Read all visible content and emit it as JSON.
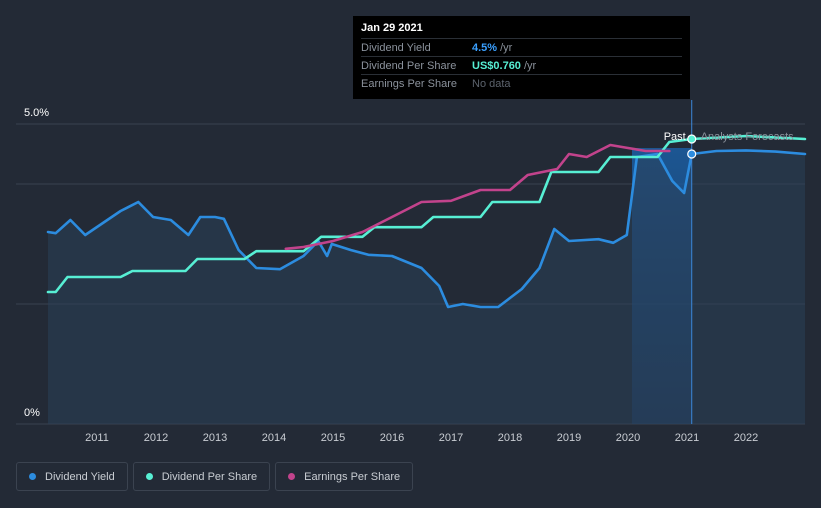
{
  "chart_data": {
    "type": "line",
    "title": "",
    "y_axis": {
      "top_label": "5.0%",
      "bottom_label": "0%",
      "ylim": [
        0,
        5.0
      ]
    },
    "x_ticks": [
      "2011",
      "2012",
      "2013",
      "2014",
      "2015",
      "2016",
      "2017",
      "2018",
      "2019",
      "2020",
      "2021",
      "2022"
    ],
    "x_range": [
      2010.0,
      2023.0
    ],
    "past_label": "Past",
    "forecast_label": "Analysts Forecasts",
    "cursor_year": 2021.08,
    "series": [
      {
        "name": "Dividend Yield",
        "color": "#2c8cdf",
        "points": [
          [
            2010.0,
            3.2
          ],
          [
            2010.3,
            3.18
          ],
          [
            2010.55,
            3.4
          ],
          [
            2010.8,
            3.15
          ],
          [
            2011.1,
            3.35
          ],
          [
            2011.4,
            3.55
          ],
          [
            2011.7,
            3.7
          ],
          [
            2011.95,
            3.45
          ],
          [
            2012.25,
            3.4
          ],
          [
            2012.55,
            3.15
          ],
          [
            2012.75,
            3.45
          ],
          [
            2013.0,
            3.45
          ],
          [
            2013.15,
            3.42
          ],
          [
            2013.4,
            2.9
          ],
          [
            2013.7,
            2.6
          ],
          [
            2014.1,
            2.58
          ],
          [
            2014.5,
            2.8
          ],
          [
            2014.75,
            3.05
          ],
          [
            2014.9,
            2.8
          ],
          [
            2014.98,
            3.0
          ],
          [
            2015.3,
            2.9
          ],
          [
            2015.6,
            2.82
          ],
          [
            2016.0,
            2.8
          ],
          [
            2016.5,
            2.6
          ],
          [
            2016.8,
            2.3
          ],
          [
            2016.95,
            1.95
          ],
          [
            2017.2,
            2.0
          ],
          [
            2017.5,
            1.95
          ],
          [
            2017.8,
            1.95
          ],
          [
            2018.2,
            2.25
          ],
          [
            2018.5,
            2.6
          ],
          [
            2018.75,
            3.25
          ],
          [
            2019.0,
            3.05
          ],
          [
            2019.5,
            3.08
          ],
          [
            2019.75,
            3.02
          ],
          [
            2019.98,
            3.15
          ],
          [
            2020.15,
            4.45
          ],
          [
            2020.5,
            4.5
          ],
          [
            2020.75,
            4.05
          ],
          [
            2020.95,
            3.85
          ],
          [
            2021.08,
            4.5
          ],
          [
            2021.5,
            4.55
          ],
          [
            2022.0,
            4.56
          ],
          [
            2022.5,
            4.54
          ],
          [
            2023.0,
            4.5
          ]
        ]
      },
      {
        "name": "Dividend Per Share",
        "color": "#57efd4",
        "points": [
          [
            2010.0,
            2.2
          ],
          [
            2010.3,
            2.2
          ],
          [
            2010.5,
            2.45
          ],
          [
            2011.4,
            2.45
          ],
          [
            2011.6,
            2.55
          ],
          [
            2012.5,
            2.55
          ],
          [
            2012.7,
            2.75
          ],
          [
            2013.5,
            2.75
          ],
          [
            2013.7,
            2.88
          ],
          [
            2014.5,
            2.88
          ],
          [
            2014.8,
            3.12
          ],
          [
            2015.5,
            3.12
          ],
          [
            2015.7,
            3.28
          ],
          [
            2016.5,
            3.28
          ],
          [
            2016.7,
            3.45
          ],
          [
            2017.5,
            3.45
          ],
          [
            2017.7,
            3.7
          ],
          [
            2018.5,
            3.7
          ],
          [
            2018.7,
            4.2
          ],
          [
            2019.5,
            4.2
          ],
          [
            2019.7,
            4.45
          ],
          [
            2020.5,
            4.45
          ],
          [
            2020.7,
            4.7
          ],
          [
            2021.08,
            4.75
          ],
          [
            2022.0,
            4.8
          ],
          [
            2023.0,
            4.75
          ]
        ]
      },
      {
        "name": "Earnings Per Share",
        "color": "#c2438c",
        "points": [
          [
            2014.2,
            2.92
          ],
          [
            2014.5,
            2.95
          ],
          [
            2015.0,
            3.05
          ],
          [
            2015.5,
            3.2
          ],
          [
            2016.0,
            3.45
          ],
          [
            2016.5,
            3.7
          ],
          [
            2017.0,
            3.72
          ],
          [
            2017.5,
            3.9
          ],
          [
            2018.0,
            3.9
          ],
          [
            2018.3,
            4.15
          ],
          [
            2018.8,
            4.25
          ],
          [
            2019.0,
            4.5
          ],
          [
            2019.3,
            4.45
          ],
          [
            2019.7,
            4.65
          ],
          [
            2020.0,
            4.6
          ],
          [
            2020.3,
            4.55
          ],
          [
            2020.7,
            4.55
          ]
        ]
      }
    ]
  },
  "tooltip": {
    "date": "Jan 29 2021",
    "rows": [
      {
        "label": "Dividend Yield",
        "value": "4.5%",
        "unit": "/yr"
      },
      {
        "label": "Dividend Per Share",
        "value": "US$0.760",
        "unit": "/yr"
      },
      {
        "label": "Earnings Per Share",
        "value": "No data",
        "unit": ""
      }
    ]
  },
  "legend": [
    {
      "label": "Dividend Yield",
      "color": "#2c8cdf"
    },
    {
      "label": "Dividend Per Share",
      "color": "#57efd4"
    },
    {
      "label": "Earnings Per Share",
      "color": "#c2438c"
    }
  ]
}
